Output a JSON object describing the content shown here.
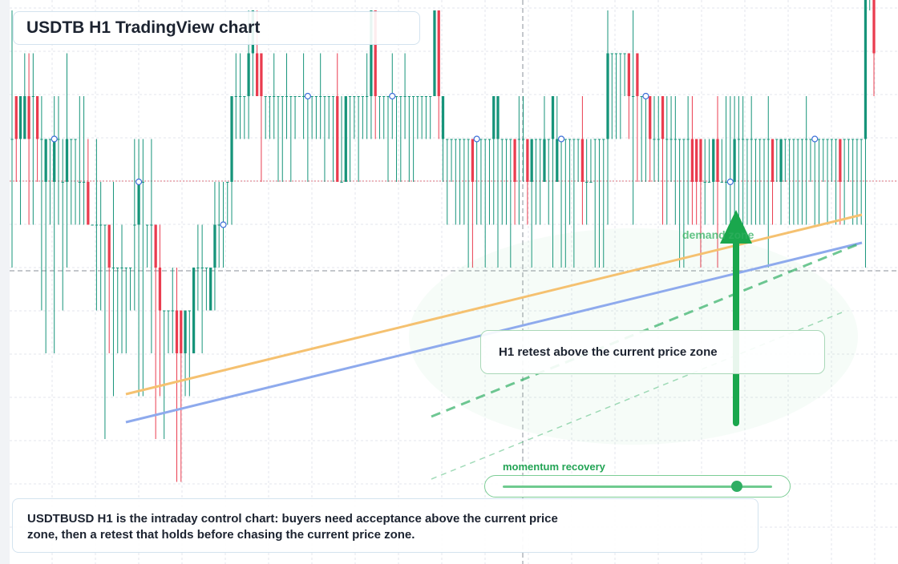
{
  "title": "USDTB H1 TradingView chart",
  "note": "USDTBUSD H1 is the intraday control chart: buyers need acceptance above the current price zone, then a retest that holds before chasing the current price zone.",
  "retest_label": "H1 retest above the current price zone",
  "momentum": {
    "label": "momentum recovery",
    "level": 0.87
  },
  "demand_label": "demand zone",
  "colors": {
    "bull": "#16947a",
    "bear": "#ea3c4f",
    "trend_orange": "#f5c170",
    "trend_blue": "#8eaaed",
    "trend_green": "#33b066",
    "arrow": "#1aa74d",
    "grid": "#e3e6ec"
  },
  "chart_data": {
    "type": "candlestick",
    "timeframe": "H1",
    "grid": true,
    "annotations": [
      "H1 retest above the current price zone",
      "momentum recovery",
      "demand zone"
    ],
    "candles": [
      [
        3,
        3,
        6,
        0
      ],
      [
        4,
        3,
        4,
        2
      ],
      [
        3,
        4,
        4,
        1
      ],
      [
        3,
        4,
        5,
        3
      ],
      [
        4,
        3,
        5,
        1
      ],
      [
        4,
        4,
        5,
        1
      ],
      [
        4,
        3,
        4,
        2
      ],
      [
        3,
        3,
        4,
        -1
      ],
      [
        2,
        3,
        3,
        -2
      ],
      [
        3,
        3,
        3,
        1
      ],
      [
        2,
        3,
        4,
        -2
      ],
      [
        3,
        3,
        4,
        1
      ],
      [
        2,
        2,
        3,
        -1
      ],
      [
        2,
        3,
        5,
        0
      ],
      [
        3,
        3,
        3,
        1
      ],
      [
        3,
        3,
        3,
        1
      ],
      [
        2,
        2,
        4,
        1
      ],
      [
        2,
        2,
        4,
        1
      ],
      [
        2,
        1,
        3,
        1
      ],
      [
        1,
        1,
        1,
        1
      ],
      [
        1,
        1,
        3,
        -1
      ],
      [
        1,
        1,
        2,
        -1
      ],
      [
        1,
        1,
        1,
        -4
      ],
      [
        1,
        0,
        1,
        -2
      ],
      [
        0,
        0,
        2,
        -3
      ],
      [
        0,
        0,
        0,
        -2
      ],
      [
        0,
        0,
        1,
        -2
      ],
      [
        0,
        0,
        0,
        -2
      ],
      [
        0,
        0,
        0,
        -1
      ],
      [
        1,
        1,
        3,
        -1
      ],
      [
        1,
        2,
        3,
        -3
      ],
      [
        2,
        2,
        3,
        -3
      ],
      [
        1,
        1,
        1,
        0
      ],
      [
        1,
        1,
        3,
        -2
      ],
      [
        1,
        0,
        1,
        -4
      ],
      [
        0,
        -1,
        1,
        -3
      ],
      [
        -1,
        -1,
        -1,
        -4
      ],
      [
        -1,
        -1,
        -1,
        -2
      ],
      [
        -1,
        -1,
        0,
        -2
      ],
      [
        -1,
        -2,
        0,
        -5
      ],
      [
        -1,
        -2,
        -1,
        -5
      ],
      [
        -2,
        -1,
        -1,
        -3
      ],
      [
        -1,
        -1,
        -1,
        -3
      ],
      [
        -2,
        0,
        0,
        -2
      ],
      [
        0,
        0,
        1,
        -1
      ],
      [
        0,
        0,
        1,
        -2
      ],
      [
        0,
        0,
        0,
        -1
      ],
      [
        -1,
        0,
        0,
        -1
      ],
      [
        0,
        1,
        2,
        -1
      ],
      [
        1,
        1,
        2,
        0
      ],
      [
        1,
        1,
        2,
        0
      ],
      [
        2,
        2,
        2,
        1
      ],
      [
        2,
        4,
        4,
        1
      ],
      [
        4,
        4,
        5,
        3
      ],
      [
        4,
        4,
        5,
        3
      ],
      [
        4,
        4,
        4,
        3
      ],
      [
        4,
        5,
        6,
        3
      ],
      [
        5,
        6,
        6,
        4
      ],
      [
        5,
        4,
        6,
        4
      ],
      [
        5,
        4,
        5,
        2
      ],
      [
        4,
        4,
        4,
        3
      ],
      [
        4,
        4,
        4,
        3
      ],
      [
        4,
        4,
        5,
        3
      ],
      [
        4,
        4,
        4,
        2
      ],
      [
        4,
        4,
        4,
        2
      ],
      [
        4,
        4,
        5,
        3
      ],
      [
        4,
        4,
        4,
        2
      ],
      [
        4,
        4,
        4,
        3
      ],
      [
        4,
        4,
        4,
        4
      ],
      [
        4,
        4,
        5,
        3
      ],
      [
        4,
        4,
        4,
        2
      ],
      [
        4,
        4,
        4,
        3
      ],
      [
        4,
        4,
        4,
        3
      ],
      [
        4,
        4,
        5,
        3
      ],
      [
        4,
        4,
        4,
        2
      ],
      [
        4,
        4,
        4,
        3
      ],
      [
        4,
        4,
        4,
        2
      ],
      [
        4,
        2,
        5,
        2
      ],
      [
        2,
        2,
        4,
        2
      ],
      [
        2,
        4,
        4,
        3
      ],
      [
        4,
        4,
        4,
        2
      ],
      [
        4,
        4,
        4,
        3
      ],
      [
        4,
        4,
        4,
        2
      ],
      [
        4,
        4,
        4,
        3
      ],
      [
        4,
        4,
        5,
        3
      ],
      [
        4,
        6,
        6,
        3
      ],
      [
        6,
        4,
        6,
        3
      ],
      [
        4,
        4,
        4,
        3
      ],
      [
        4,
        4,
        4,
        3
      ],
      [
        4,
        4,
        4,
        2
      ],
      [
        4,
        4,
        5,
        3
      ],
      [
        4,
        4,
        4,
        2
      ],
      [
        4,
        4,
        4,
        2
      ],
      [
        4,
        4,
        5,
        3
      ],
      [
        4,
        4,
        4,
        2
      ],
      [
        4,
        4,
        4,
        2
      ],
      [
        4,
        4,
        4,
        3
      ],
      [
        4,
        4,
        4,
        3
      ],
      [
        4,
        4,
        4,
        3
      ],
      [
        4,
        4,
        4,
        3
      ],
      [
        4,
        6,
        6,
        4
      ],
      [
        6,
        4,
        6,
        3
      ],
      [
        3,
        4,
        4,
        2
      ],
      [
        3,
        3,
        3,
        1
      ],
      [
        3,
        3,
        3,
        2
      ],
      [
        3,
        3,
        3,
        1
      ],
      [
        3,
        3,
        3,
        1
      ],
      [
        3,
        3,
        3,
        1
      ],
      [
        3,
        3,
        3,
        0
      ],
      [
        3,
        2,
        3,
        0
      ],
      [
        3,
        3,
        3,
        1
      ],
      [
        3,
        3,
        3,
        1
      ],
      [
        3,
        3,
        3,
        0
      ],
      [
        3,
        3,
        3,
        1
      ],
      [
        3,
        4,
        4,
        1
      ],
      [
        3,
        4,
        4,
        0
      ],
      [
        3,
        3,
        3,
        1
      ],
      [
        3,
        3,
        3,
        1
      ],
      [
        3,
        3,
        3,
        0
      ],
      [
        3,
        2,
        3,
        1
      ],
      [
        3,
        3,
        4,
        1
      ],
      [
        3,
        3,
        4,
        2
      ],
      [
        3,
        2,
        3,
        1
      ],
      [
        2,
        3,
        3,
        0
      ],
      [
        3,
        3,
        3,
        1
      ],
      [
        3,
        3,
        3,
        1
      ],
      [
        2,
        3,
        4,
        2
      ],
      [
        3,
        3,
        3,
        1
      ],
      [
        3,
        4,
        4,
        0
      ],
      [
        2,
        3,
        4,
        2
      ],
      [
        3,
        3,
        3,
        0
      ],
      [
        3,
        3,
        3,
        0
      ],
      [
        3,
        3,
        3,
        1
      ],
      [
        3,
        3,
        3,
        0
      ],
      [
        3,
        3,
        3,
        2
      ],
      [
        3,
        2,
        4,
        1
      ],
      [
        2,
        2,
        3,
        1
      ],
      [
        2,
        2,
        3,
        2
      ],
      [
        3,
        3,
        3,
        0
      ],
      [
        3,
        3,
        3,
        0
      ],
      [
        3,
        3,
        3,
        0
      ],
      [
        3,
        5,
        6,
        1
      ],
      [
        5,
        5,
        5,
        3
      ],
      [
        5,
        5,
        5,
        3
      ],
      [
        5,
        5,
        5,
        3
      ],
      [
        5,
        5,
        5,
        4
      ],
      [
        5,
        4,
        5,
        3
      ],
      [
        4,
        4,
        6,
        1
      ],
      [
        5,
        4,
        5,
        2
      ],
      [
        4,
        4,
        4,
        2
      ],
      [
        4,
        4,
        4,
        2
      ],
      [
        4,
        3,
        4,
        2
      ],
      [
        3,
        3,
        4,
        2
      ],
      [
        3,
        3,
        4,
        2
      ],
      [
        4,
        3,
        4,
        1
      ],
      [
        3,
        3,
        4,
        1
      ],
      [
        3,
        3,
        4,
        2
      ],
      [
        3,
        3,
        4,
        1
      ],
      [
        3,
        3,
        3,
        0
      ],
      [
        3,
        3,
        3,
        0
      ],
      [
        3,
        3,
        4,
        1
      ],
      [
        3,
        2,
        4,
        1
      ],
      [
        3,
        2,
        3,
        1
      ],
      [
        3,
        2,
        3,
        0
      ],
      [
        2,
        2,
        3,
        1
      ],
      [
        2,
        2,
        3,
        2
      ],
      [
        2,
        3,
        3,
        1
      ],
      [
        3,
        2,
        4,
        0
      ],
      [
        2,
        2,
        3,
        2
      ],
      [
        2,
        2,
        4,
        1
      ],
      [
        2,
        2,
        4,
        1
      ],
      [
        2,
        3,
        4,
        1
      ],
      [
        3,
        3,
        4,
        0
      ],
      [
        3,
        3,
        4,
        1
      ],
      [
        3,
        3,
        3,
        1
      ],
      [
        3,
        3,
        4,
        1
      ],
      [
        3,
        3,
        3,
        1
      ],
      [
        3,
        3,
        3,
        1
      ],
      [
        3,
        3,
        3,
        1
      ],
      [
        3,
        3,
        4,
        0
      ],
      [
        3,
        2,
        3,
        1
      ],
      [
        3,
        3,
        3,
        2
      ],
      [
        2,
        3,
        3,
        1
      ],
      [
        3,
        3,
        3,
        2
      ],
      [
        3,
        3,
        3,
        1
      ],
      [
        3,
        3,
        3,
        1
      ],
      [
        3,
        3,
        3,
        1
      ],
      [
        3,
        3,
        3,
        1
      ],
      [
        3,
        3,
        4,
        1
      ],
      [
        3,
        3,
        3,
        2
      ],
      [
        3,
        3,
        3,
        1
      ],
      [
        3,
        3,
        3,
        1
      ],
      [
        3,
        3,
        3,
        2
      ],
      [
        3,
        3,
        3,
        1
      ],
      [
        3,
        3,
        3,
        2
      ],
      [
        3,
        3,
        3,
        1
      ],
      [
        3,
        2,
        3,
        1
      ],
      [
        3,
        3,
        3,
        1
      ],
      [
        3,
        3,
        3,
        2
      ],
      [
        3,
        3,
        3,
        1
      ],
      [
        3,
        3,
        3,
        1
      ],
      [
        3,
        3,
        3,
        1
      ],
      [
        3,
        7,
        7,
        0
      ],
      [
        7,
        7,
        8,
        6
      ],
      [
        7,
        5,
        7,
        4
      ]
    ]
  }
}
